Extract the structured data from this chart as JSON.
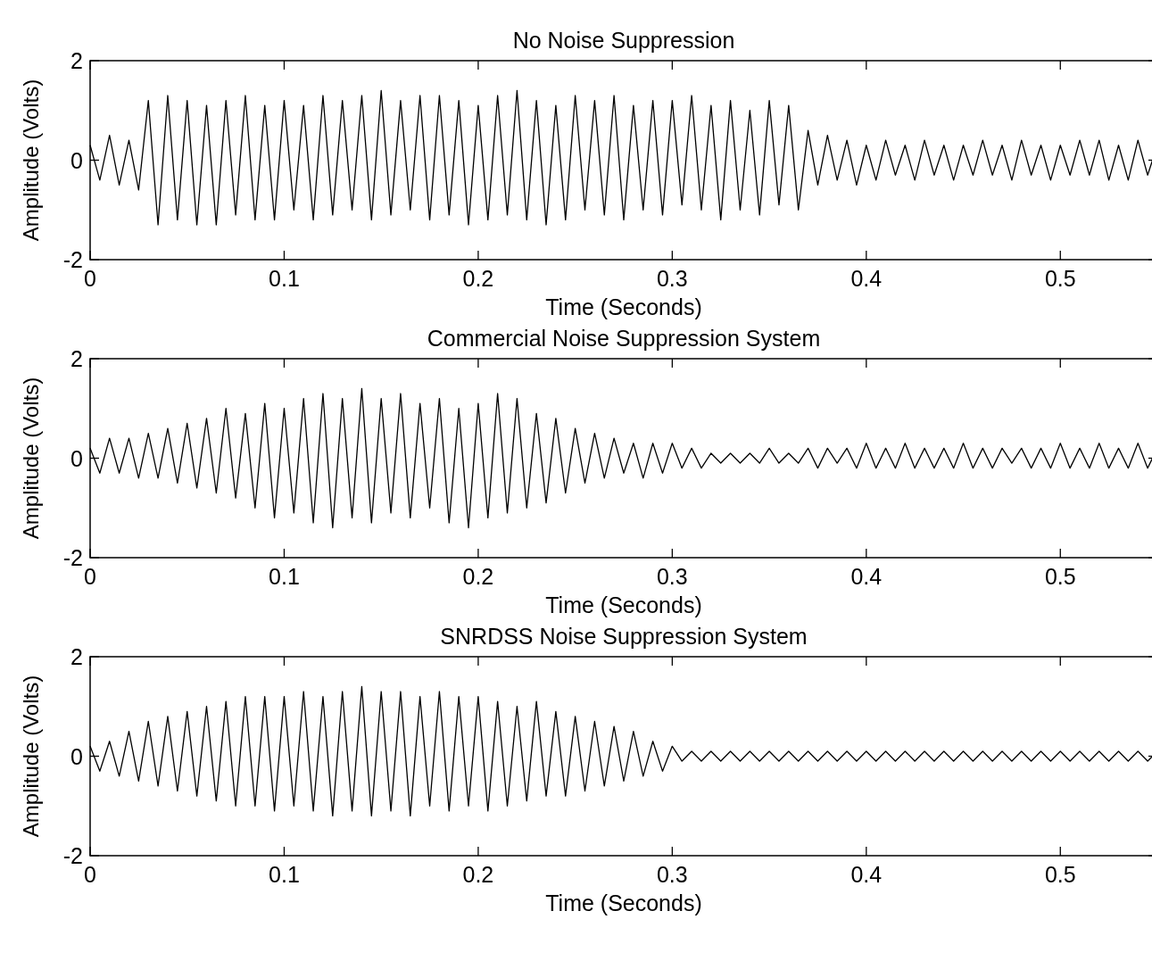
{
  "chart_data": [
    {
      "type": "line",
      "title": "No Noise Suppression",
      "xlabel": "Time (Seconds)",
      "ylabel": "Amplitude (Volts)",
      "color": "#000000",
      "xlim": [
        0,
        0.55
      ],
      "ylim": [
        -2,
        2
      ],
      "xticks": [
        0,
        0.1,
        0.2,
        0.3,
        0.4,
        0.5
      ],
      "yticks": [
        -2,
        0,
        2
      ],
      "x": [
        0,
        0.005,
        0.01,
        0.015,
        0.02,
        0.025,
        0.03,
        0.035,
        0.04,
        0.045,
        0.05,
        0.055,
        0.06,
        0.065,
        0.07,
        0.075,
        0.08,
        0.085,
        0.09,
        0.095,
        0.1,
        0.105,
        0.11,
        0.115,
        0.12,
        0.125,
        0.13,
        0.135,
        0.14,
        0.145,
        0.15,
        0.155,
        0.16,
        0.165,
        0.17,
        0.175,
        0.18,
        0.185,
        0.19,
        0.195,
        0.2,
        0.205,
        0.21,
        0.215,
        0.22,
        0.225,
        0.23,
        0.235,
        0.24,
        0.245,
        0.25,
        0.255,
        0.26,
        0.265,
        0.27,
        0.275,
        0.28,
        0.285,
        0.29,
        0.295,
        0.3,
        0.305,
        0.31,
        0.315,
        0.32,
        0.325,
        0.33,
        0.335,
        0.34,
        0.345,
        0.35,
        0.355,
        0.36,
        0.365,
        0.37,
        0.375,
        0.38,
        0.385,
        0.39,
        0.395,
        0.4,
        0.405,
        0.41,
        0.415,
        0.42,
        0.425,
        0.43,
        0.435,
        0.44,
        0.445,
        0.45,
        0.455,
        0.46,
        0.465,
        0.47,
        0.475,
        0.48,
        0.485,
        0.49,
        0.495,
        0.5,
        0.505,
        0.51,
        0.515,
        0.52,
        0.525,
        0.53,
        0.535,
        0.54,
        0.545,
        0.55
      ],
      "values": [
        0.3,
        -0.4,
        0.5,
        -0.5,
        0.4,
        -0.6,
        1.2,
        -1.3,
        1.3,
        -1.2,
        1.2,
        -1.3,
        1.1,
        -1.3,
        1.2,
        -1.1,
        1.3,
        -1.2,
        1.1,
        -1.2,
        1.2,
        -1.0,
        1.1,
        -1.2,
        1.3,
        -1.1,
        1.2,
        -1.0,
        1.3,
        -1.2,
        1.4,
        -1.1,
        1.2,
        -1.0,
        1.3,
        -1.2,
        1.3,
        -1.1,
        1.2,
        -1.3,
        1.1,
        -1.2,
        1.3,
        -1.1,
        1.4,
        -1.2,
        1.2,
        -1.3,
        1.1,
        -1.2,
        1.3,
        -1.0,
        1.2,
        -1.1,
        1.3,
        -1.2,
        1.1,
        -1.0,
        1.2,
        -1.1,
        1.2,
        -0.9,
        1.3,
        -1.0,
        1.1,
        -1.2,
        1.2,
        -1.0,
        1.0,
        -1.1,
        1.2,
        -0.9,
        1.1,
        -1.0,
        0.6,
        -0.5,
        0.5,
        -0.4,
        0.4,
        -0.5,
        0.3,
        -0.4,
        0.4,
        -0.3,
        0.3,
        -0.4,
        0.4,
        -0.3,
        0.3,
        -0.4,
        0.3,
        -0.3,
        0.4,
        -0.3,
        0.3,
        -0.4,
        0.4,
        -0.3,
        0.3,
        -0.4,
        0.3,
        -0.3,
        0.4,
        -0.3,
        0.4,
        -0.4,
        0.3,
        -0.4,
        0.4,
        -0.3,
        0.3
      ]
    },
    {
      "type": "line",
      "title": "Commercial Noise Suppression System",
      "xlabel": "Time (Seconds)",
      "ylabel": "Amplitude (Volts)",
      "color": "#000000",
      "xlim": [
        0,
        0.55
      ],
      "ylim": [
        -2,
        2
      ],
      "xticks": [
        0,
        0.1,
        0.2,
        0.3,
        0.4,
        0.5
      ],
      "yticks": [
        -2,
        0,
        2
      ],
      "x": [
        0,
        0.005,
        0.01,
        0.015,
        0.02,
        0.025,
        0.03,
        0.035,
        0.04,
        0.045,
        0.05,
        0.055,
        0.06,
        0.065,
        0.07,
        0.075,
        0.08,
        0.085,
        0.09,
        0.095,
        0.1,
        0.105,
        0.11,
        0.115,
        0.12,
        0.125,
        0.13,
        0.135,
        0.14,
        0.145,
        0.15,
        0.155,
        0.16,
        0.165,
        0.17,
        0.175,
        0.18,
        0.185,
        0.19,
        0.195,
        0.2,
        0.205,
        0.21,
        0.215,
        0.22,
        0.225,
        0.23,
        0.235,
        0.24,
        0.245,
        0.25,
        0.255,
        0.26,
        0.265,
        0.27,
        0.275,
        0.28,
        0.285,
        0.29,
        0.295,
        0.3,
        0.305,
        0.31,
        0.315,
        0.32,
        0.325,
        0.33,
        0.335,
        0.34,
        0.345,
        0.35,
        0.355,
        0.36,
        0.365,
        0.37,
        0.375,
        0.38,
        0.385,
        0.39,
        0.395,
        0.4,
        0.405,
        0.41,
        0.415,
        0.42,
        0.425,
        0.43,
        0.435,
        0.44,
        0.445,
        0.45,
        0.455,
        0.46,
        0.465,
        0.47,
        0.475,
        0.48,
        0.485,
        0.49,
        0.495,
        0.5,
        0.505,
        0.51,
        0.515,
        0.52,
        0.525,
        0.53,
        0.535,
        0.54,
        0.545,
        0.55
      ],
      "values": [
        0.2,
        -0.3,
        0.4,
        -0.3,
        0.4,
        -0.4,
        0.5,
        -0.4,
        0.6,
        -0.5,
        0.7,
        -0.6,
        0.8,
        -0.7,
        1.0,
        -0.8,
        0.9,
        -1.0,
        1.1,
        -1.2,
        1.0,
        -1.1,
        1.2,
        -1.3,
        1.3,
        -1.4,
        1.2,
        -1.2,
        1.4,
        -1.3,
        1.2,
        -1.1,
        1.3,
        -1.2,
        1.1,
        -1.0,
        1.2,
        -1.3,
        1.0,
        -1.4,
        1.1,
        -1.2,
        1.3,
        -1.1,
        1.2,
        -1.0,
        0.9,
        -0.9,
        0.8,
        -0.7,
        0.6,
        -0.5,
        0.5,
        -0.4,
        0.4,
        -0.3,
        0.3,
        -0.4,
        0.3,
        -0.3,
        0.3,
        -0.2,
        0.2,
        -0.2,
        0.1,
        -0.1,
        0.1,
        -0.1,
        0.1,
        -0.1,
        0.2,
        -0.1,
        0.1,
        -0.1,
        0.2,
        -0.2,
        0.2,
        -0.1,
        0.2,
        -0.2,
        0.3,
        -0.2,
        0.2,
        -0.2,
        0.3,
        -0.2,
        0.2,
        -0.2,
        0.2,
        -0.2,
        0.3,
        -0.2,
        0.2,
        -0.2,
        0.2,
        -0.1,
        0.2,
        -0.2,
        0.2,
        -0.2,
        0.3,
        -0.2,
        0.2,
        -0.2,
        0.3,
        -0.2,
        0.2,
        -0.2,
        0.3,
        -0.2,
        0.2
      ]
    },
    {
      "type": "line",
      "title": "SNRDSS Noise Suppression System",
      "xlabel": "Time (Seconds)",
      "ylabel": "Amplitude (Volts)",
      "color": "#000000",
      "xlim": [
        0,
        0.55
      ],
      "ylim": [
        -2,
        2
      ],
      "xticks": [
        0,
        0.1,
        0.2,
        0.3,
        0.4,
        0.5
      ],
      "yticks": [
        -2,
        0,
        2
      ],
      "x": [
        0,
        0.005,
        0.01,
        0.015,
        0.02,
        0.025,
        0.03,
        0.035,
        0.04,
        0.045,
        0.05,
        0.055,
        0.06,
        0.065,
        0.07,
        0.075,
        0.08,
        0.085,
        0.09,
        0.095,
        0.1,
        0.105,
        0.11,
        0.115,
        0.12,
        0.125,
        0.13,
        0.135,
        0.14,
        0.145,
        0.15,
        0.155,
        0.16,
        0.165,
        0.17,
        0.175,
        0.18,
        0.185,
        0.19,
        0.195,
        0.2,
        0.205,
        0.21,
        0.215,
        0.22,
        0.225,
        0.23,
        0.235,
        0.24,
        0.245,
        0.25,
        0.255,
        0.26,
        0.265,
        0.27,
        0.275,
        0.28,
        0.285,
        0.29,
        0.295,
        0.3,
        0.305,
        0.31,
        0.315,
        0.32,
        0.325,
        0.33,
        0.335,
        0.34,
        0.345,
        0.35,
        0.355,
        0.36,
        0.365,
        0.37,
        0.375,
        0.38,
        0.385,
        0.39,
        0.395,
        0.4,
        0.405,
        0.41,
        0.415,
        0.42,
        0.425,
        0.43,
        0.435,
        0.44,
        0.445,
        0.45,
        0.455,
        0.46,
        0.465,
        0.47,
        0.475,
        0.48,
        0.485,
        0.49,
        0.495,
        0.5,
        0.505,
        0.51,
        0.515,
        0.52,
        0.525,
        0.53,
        0.535,
        0.54,
        0.545,
        0.55
      ],
      "values": [
        0.2,
        -0.3,
        0.3,
        -0.4,
        0.5,
        -0.5,
        0.7,
        -0.6,
        0.8,
        -0.7,
        0.9,
        -0.8,
        1.0,
        -0.9,
        1.1,
        -1.0,
        1.2,
        -1.0,
        1.2,
        -1.1,
        1.2,
        -1.0,
        1.3,
        -1.1,
        1.2,
        -1.2,
        1.3,
        -1.1,
        1.4,
        -1.2,
        1.3,
        -1.1,
        1.3,
        -1.2,
        1.2,
        -1.0,
        1.3,
        -1.1,
        1.2,
        -1.0,
        1.2,
        -1.1,
        1.1,
        -1.0,
        1.0,
        -0.9,
        1.1,
        -0.8,
        0.9,
        -0.8,
        0.8,
        -0.7,
        0.7,
        -0.6,
        0.6,
        -0.5,
        0.5,
        -0.4,
        0.3,
        -0.3,
        0.2,
        -0.1,
        0.1,
        -0.1,
        0.1,
        -0.1,
        0.1,
        -0.1,
        0.1,
        -0.1,
        0.1,
        -0.1,
        0.1,
        -0.1,
        0.1,
        -0.1,
        0.1,
        -0.1,
        0.1,
        -0.1,
        0.1,
        -0.1,
        0.1,
        -0.1,
        0.1,
        -0.1,
        0.1,
        -0.1,
        0.1,
        -0.1,
        0.1,
        -0.1,
        0.1,
        -0.1,
        0.1,
        -0.1,
        0.1,
        -0.1,
        0.1,
        -0.1,
        0.1,
        -0.1,
        0.1,
        -0.1,
        0.1,
        -0.1,
        0.1,
        -0.1,
        0.1,
        -0.1,
        0.1
      ]
    }
  ]
}
